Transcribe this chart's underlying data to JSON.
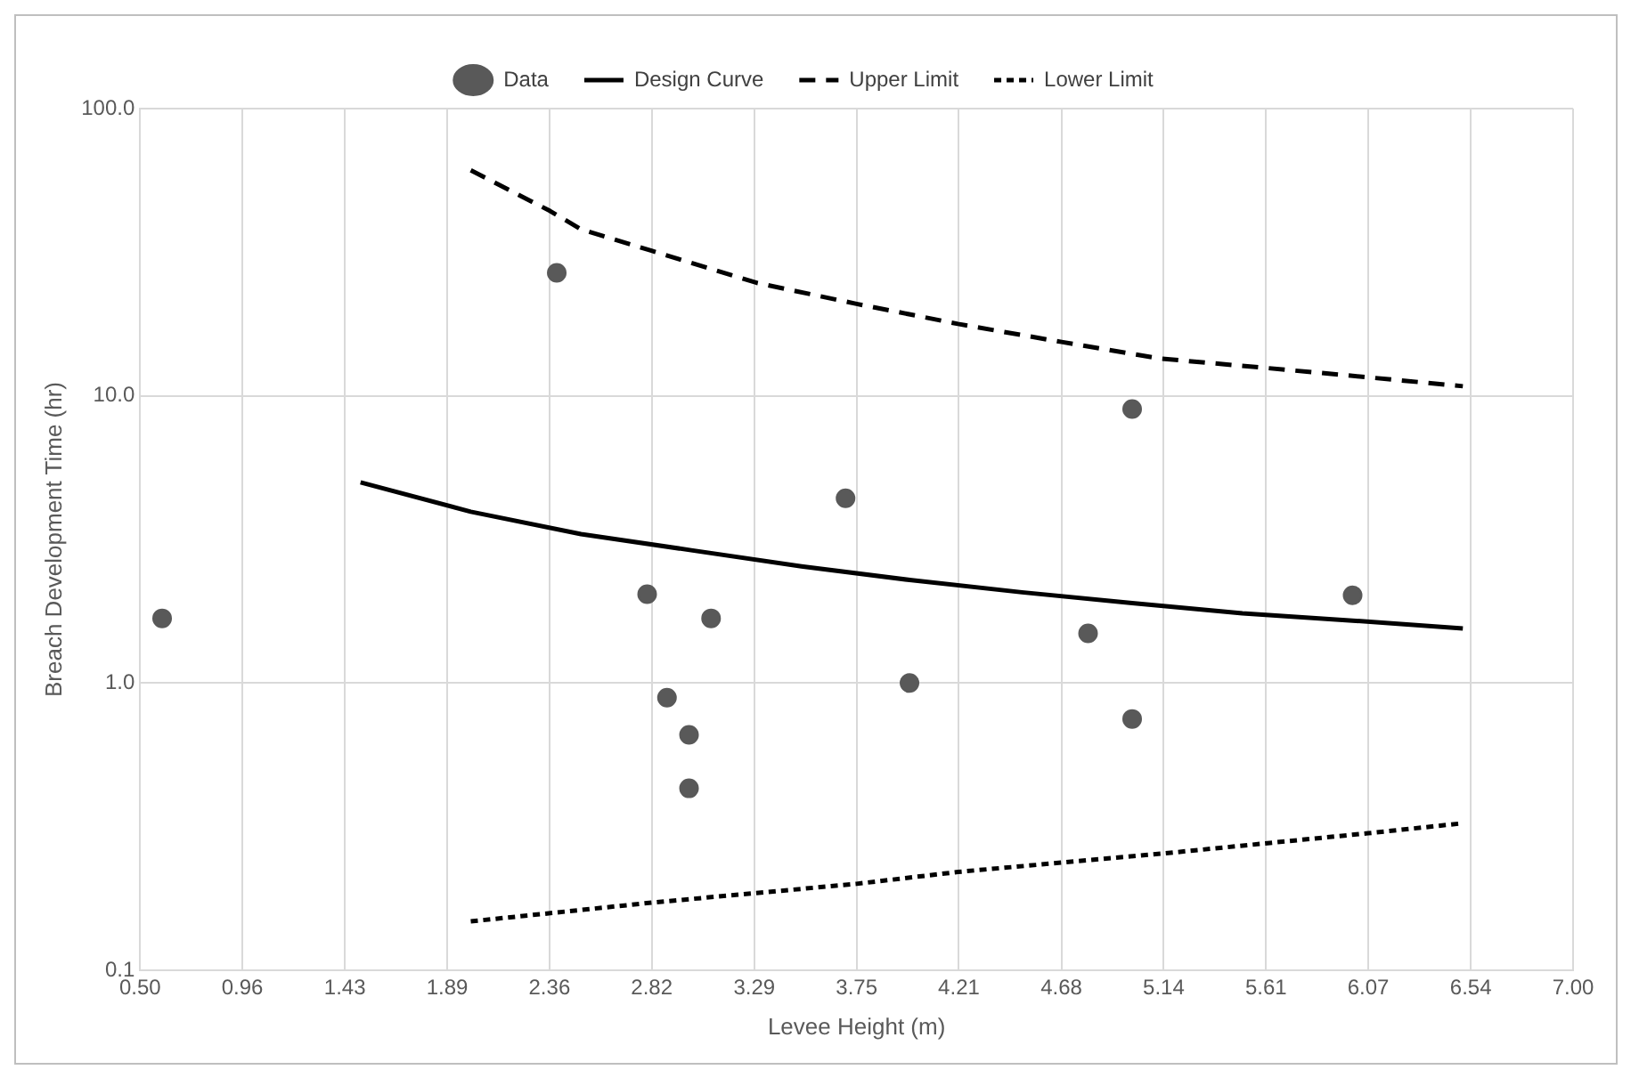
{
  "chart_data": {
    "type": "scatter",
    "xlabel": "Levee Height (m)",
    "ylabel": "Breach Development Time (hr)",
    "log": "y",
    "grid": true,
    "legend": "top",
    "xlim": [
      0.5,
      7.0
    ],
    "xticks": [
      {
        "value": 0.5,
        "label": "0.50"
      },
      {
        "value": 0.964,
        "label": "0.96"
      },
      {
        "value": 1.429,
        "label": "1.43"
      },
      {
        "value": 1.893,
        "label": "1.89"
      },
      {
        "value": 2.357,
        "label": "2.36"
      },
      {
        "value": 2.821,
        "label": "2.82"
      },
      {
        "value": 3.286,
        "label": "3.29"
      },
      {
        "value": 3.75,
        "label": "3.75"
      },
      {
        "value": 4.214,
        "label": "4.21"
      },
      {
        "value": 4.679,
        "label": "4.68"
      },
      {
        "value": 5.143,
        "label": "5.14"
      },
      {
        "value": 5.607,
        "label": "5.61"
      },
      {
        "value": 6.071,
        "label": "6.07"
      },
      {
        "value": 6.536,
        "label": "6.54"
      },
      {
        "value": 7.0,
        "label": "7.00"
      }
    ],
    "ylim": [
      0.1,
      100
    ],
    "yticks": [
      {
        "value": 0.1,
        "label": "0.1"
      },
      {
        "value": 1,
        "label": "1.0"
      },
      {
        "value": 10,
        "label": "10.0"
      },
      {
        "value": 100,
        "label": "100.0"
      }
    ],
    "series": [
      {
        "name": "Data",
        "type": "scatter",
        "marker": "circle",
        "color": "#595959",
        "x": [
          0.6,
          2.39,
          2.8,
          2.89,
          2.99,
          2.99,
          3.09,
          3.7,
          3.99,
          4.8,
          5.0,
          5.0,
          6.0
        ],
        "values": [
          1.68,
          26.8,
          2.04,
          0.89,
          0.66,
          0.43,
          1.68,
          4.4,
          1.0,
          1.49,
          9.0,
          0.75,
          2.02
        ]
      },
      {
        "name": "Design Curve",
        "type": "line",
        "marker": "none",
        "line_style": "solid",
        "color": "#000000",
        "x": [
          1.5,
          2.0,
          2.5,
          3.0,
          3.5,
          4.0,
          4.5,
          5.0,
          5.5,
          6.0,
          6.5
        ],
        "values": [
          5.0,
          3.95,
          3.3,
          2.9,
          2.55,
          2.28,
          2.07,
          1.9,
          1.75,
          1.65,
          1.55
        ]
      },
      {
        "name": "Upper Limit",
        "type": "line",
        "marker": "none",
        "line_style": "dashed",
        "color": "#000000",
        "x": [
          2.0,
          2.36,
          2.5,
          2.82,
          3.3,
          3.75,
          4.21,
          4.68,
          5.12,
          5.61,
          6.07,
          6.5
        ],
        "values": [
          61,
          44,
          38,
          32,
          24.7,
          20.9,
          17.8,
          15.4,
          13.5,
          12.5,
          11.6,
          10.8
        ]
      },
      {
        "name": "Lower Limit",
        "type": "line",
        "marker": "none",
        "line_style": "dotted",
        "color": "#000000",
        "x": [
          2.0,
          2.82,
          3.75,
          4.21,
          5.14,
          6.07,
          6.5
        ],
        "values": [
          0.148,
          0.172,
          0.2,
          0.22,
          0.255,
          0.3,
          0.325
        ]
      }
    ]
  }
}
